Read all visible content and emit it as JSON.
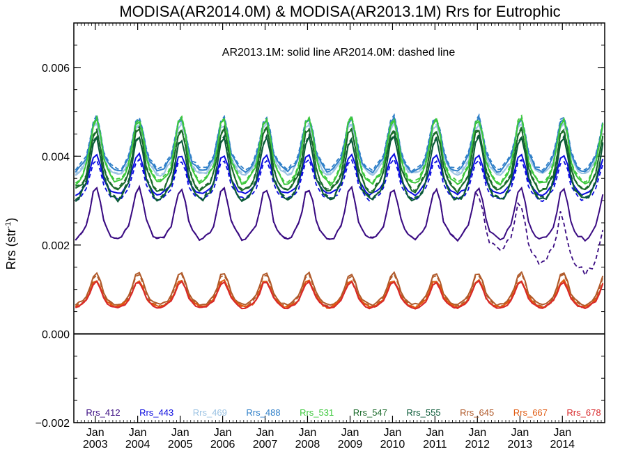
{
  "chart_data": {
    "type": "line",
    "title": "MODISA(AR2014.0M) & MODISA(AR2013.1M)  Rrs for Eutrophic",
    "annotation": "AR2013.1M: solid line   AR2014.0M: dashed line",
    "ylabel": "Rrs (str",
    "ylabel_sup": "-1",
    "ylabel_close": ")",
    "xlabel": "",
    "ylim": [
      -0.002,
      0.007
    ],
    "xlim": [
      "2002-07-01",
      "2014-12-31"
    ],
    "yticks": [
      "−0.002",
      "0.000",
      "0.002",
      "0.004",
      "0.006"
    ],
    "ytick_values": [
      -0.002,
      0.0,
      0.002,
      0.004,
      0.006
    ],
    "xticks": [
      {
        "top": "Jan",
        "bottom": "2003",
        "date": "2003-01-01"
      },
      {
        "top": "Jan",
        "bottom": "2004",
        "date": "2004-01-01"
      },
      {
        "top": "Jan",
        "bottom": "2005",
        "date": "2005-01-01"
      },
      {
        "top": "Jan",
        "bottom": "2006",
        "date": "2006-01-01"
      },
      {
        "top": "Jan",
        "bottom": "2007",
        "date": "2007-01-01"
      },
      {
        "top": "Jan",
        "bottom": "2008",
        "date": "2008-01-01"
      },
      {
        "top": "Jan",
        "bottom": "2009",
        "date": "2009-01-01"
      },
      {
        "top": "Jan",
        "bottom": "2010",
        "date": "2010-01-01"
      },
      {
        "top": "Jan",
        "bottom": "2011",
        "date": "2011-01-01"
      },
      {
        "top": "Jan",
        "bottom": "2012",
        "date": "2012-01-01"
      },
      {
        "top": "Jan",
        "bottom": "2013",
        "date": "2013-01-01"
      },
      {
        "top": "Jan",
        "bottom": "2014",
        "date": "2014-01-01"
      }
    ],
    "grid": false,
    "zero_line": 0.0,
    "legend_placement": "bottom",
    "solid_version": "AR2013.1M",
    "dashed_version": "AR2014.0M",
    "series": [
      {
        "name": "Rrs_412",
        "color": "#3a0b82",
        "base": 0.00265,
        "amp": 0.00115,
        "dash_offset": 0.0
      },
      {
        "name": "Rrs_443",
        "color": "#0a0adf",
        "base": 0.00355,
        "amp": 0.0009,
        "dash_offset": -0.00012
      },
      {
        "name": "Rrs_469",
        "color": "#9cc3e3",
        "base": 0.0041,
        "amp": 0.00115,
        "dash_offset": 3e-05
      },
      {
        "name": "Rrs_488",
        "color": "#2f7fc8",
        "base": 0.0042,
        "amp": 0.0012,
        "dash_offset": 5e-05
      },
      {
        "name": "Rrs_531",
        "color": "#3cc83c",
        "base": 0.00405,
        "amp": 0.00145,
        "dash_offset": 4e-05
      },
      {
        "name": "Rrs_547",
        "color": "#1a6a2a",
        "base": 0.00385,
        "amp": 0.0014,
        "dash_offset": 3e-05
      },
      {
        "name": "Rrs_555",
        "color": "#0b5a38",
        "base": 0.00365,
        "amp": 0.0014,
        "dash_offset": 3e-05
      },
      {
        "name": "Rrs_645",
        "color": "#b05a2a",
        "base": 0.00098,
        "amp": 0.00072,
        "dash_offset": -4e-05
      },
      {
        "name": "Rrs_667",
        "color": "#e05a10",
        "base": 0.00088,
        "amp": 0.0006,
        "dash_offset": -2e-05
      },
      {
        "name": "Rrs_678",
        "color": "#d8282a",
        "base": 0.00085,
        "amp": 0.0006,
        "dash_offset": 0.0
      }
    ]
  }
}
